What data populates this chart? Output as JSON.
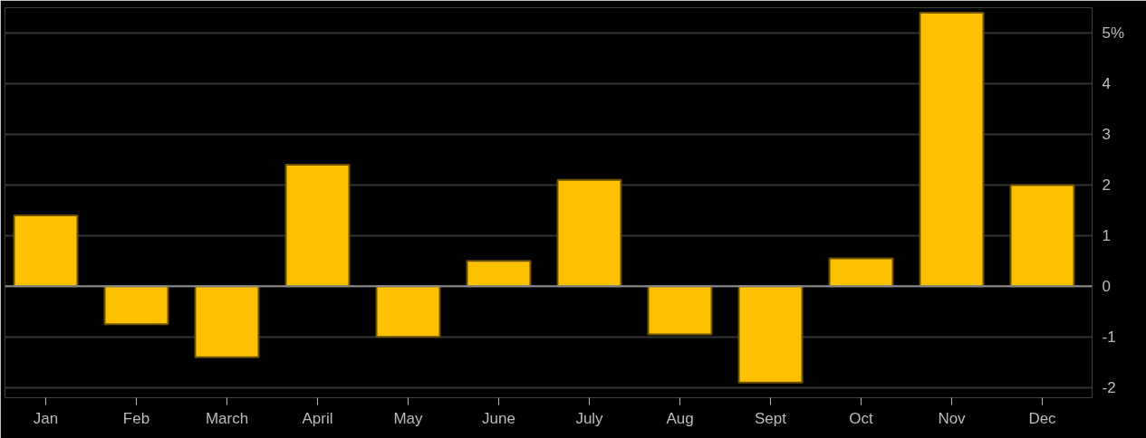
{
  "chart_data": {
    "type": "bar",
    "categories": [
      "Jan",
      "Feb",
      "March",
      "April",
      "May",
      "June",
      "July",
      "Aug",
      "Sept",
      "Oct",
      "Nov",
      "Dec"
    ],
    "values": [
      1.4,
      -0.75,
      -1.4,
      2.4,
      -1.0,
      0.5,
      2.1,
      -0.95,
      -1.9,
      0.55,
      5.4,
      2.0
    ],
    "color": "#ffc000",
    "ylim": [
      -2.2,
      5.5
    ],
    "yticks": [
      {
        "value": 5,
        "label": "5%"
      },
      4,
      3,
      2,
      1,
      0,
      -1,
      -2
    ],
    "grid": "y",
    "ref_lines": [
      {
        "axis": "y",
        "value": 0,
        "color": "#8a8a8a"
      }
    ]
  }
}
